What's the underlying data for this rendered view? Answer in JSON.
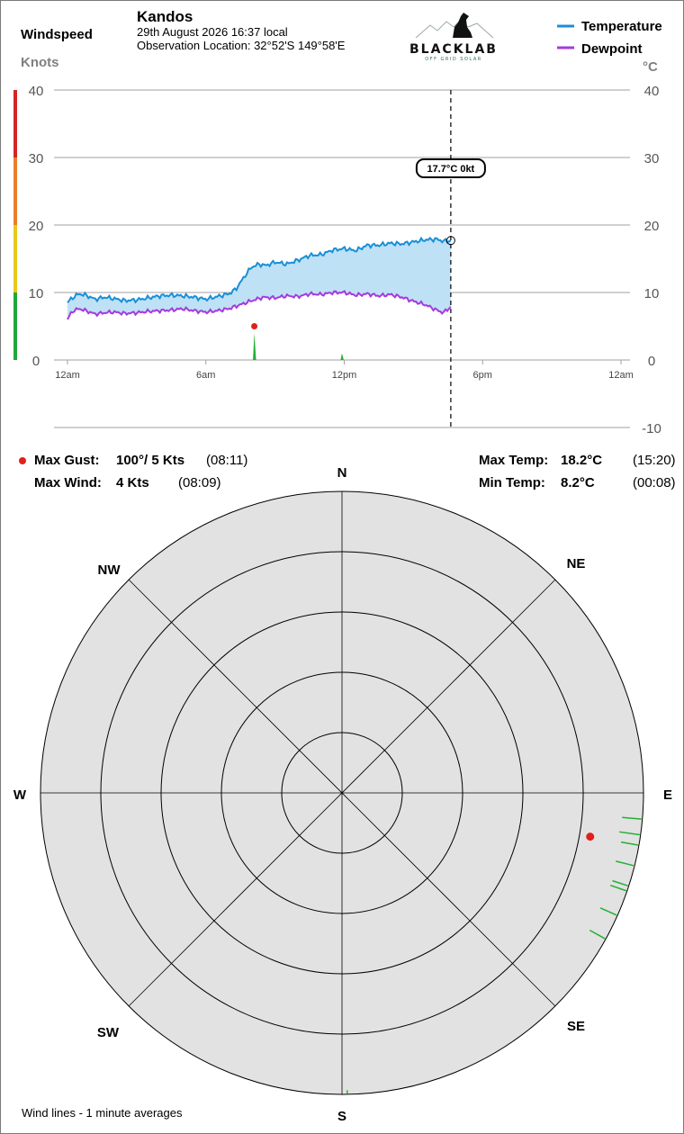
{
  "header": {
    "station": "Kandos",
    "date_line": "29th August 2026  16:37 local",
    "location_line": "Observation Location: 32°52'S 149°58'E"
  },
  "logo": {
    "brand": "BLACKLAB",
    "tagline": "OFF GRID SOLAR"
  },
  "legend": {
    "temperature_label": "Temperature",
    "dewpoint_label": "Dewpoint"
  },
  "left_axis": {
    "title": "Windspeed",
    "unit": "Knots"
  },
  "right_axis": {
    "unit": "°C"
  },
  "cursor": {
    "label": "17.7°C  0kt"
  },
  "stats": {
    "max_gust_label": "Max Gust:",
    "max_gust_value": "100°/ 5 Kts",
    "max_gust_time": "(08:11)",
    "max_wind_label": "Max Wind:",
    "max_wind_value": "4 Kts",
    "max_wind_time": "(08:09)",
    "max_temp_label": "Max Temp:",
    "max_temp_value": "18.2°C",
    "max_temp_time": "(15:20)",
    "min_temp_label": "Min Temp:",
    "min_temp_value": "8.2°C",
    "min_temp_time": "(00:08)"
  },
  "footer": {
    "note": "Wind lines - 1 minute averages"
  },
  "colors": {
    "temperature": "#1a8fd8",
    "temperature_fill": "#bfe1f5",
    "dewpoint": "#a33be0",
    "wind": "#22b033",
    "gust": "#e0201c",
    "grid": "#a0a0a0",
    "rose_bg": "#e2e2e2",
    "brand": "#2e6e52"
  },
  "chart_data": [
    {
      "type": "line",
      "x_unit": "hours since midnight",
      "x_ticks": [
        {
          "x": 0,
          "label": "12am"
        },
        {
          "x": 6,
          "label": "6am"
        },
        {
          "x": 12,
          "label": "12pm"
        },
        {
          "x": 18,
          "label": "6pm"
        },
        {
          "x": 24,
          "label": "12am"
        }
      ],
      "xlim": [
        0,
        24
      ],
      "y_left": {
        "ticks": [
          0,
          10,
          20,
          30,
          40
        ],
        "ylim": [
          0,
          40
        ]
      },
      "y_right": {
        "ticks": [
          -10,
          0,
          10,
          20,
          30,
          40
        ],
        "ylim": [
          -10,
          40
        ]
      },
      "windspeed_scale_bands": [
        {
          "from": 0,
          "to": 10,
          "color": "#1fa83a"
        },
        {
          "from": 10,
          "to": 20,
          "color": "#e8c81a"
        },
        {
          "from": 20,
          "to": 30,
          "color": "#e8802a"
        },
        {
          "from": 30,
          "to": 40,
          "color": "#d42626"
        }
      ],
      "current_time": 16.62,
      "series": [
        {
          "name": "Temperature",
          "x": [
            0,
            0.2,
            0.5,
            0.8,
            1.2,
            1.6,
            2.0,
            2.5,
            3.0,
            3.5,
            4.0,
            4.5,
            5.0,
            5.5,
            6.0,
            6.5,
            7.0,
            7.3,
            7.6,
            7.8,
            8.0,
            8.3,
            8.6,
            9.0,
            9.5,
            10.0,
            10.5,
            11.0,
            11.5,
            12.0,
            12.5,
            13.0,
            13.5,
            14.0,
            14.5,
            15.0,
            15.5,
            16.0,
            16.3,
            16.62
          ],
          "values": [
            8.5,
            9.2,
            9.8,
            9.6,
            9.0,
            9.3,
            9.1,
            8.8,
            8.9,
            9.2,
            9.5,
            9.6,
            9.5,
            9.3,
            9.0,
            9.4,
            9.8,
            10.5,
            12.0,
            13.0,
            13.8,
            14.2,
            14.0,
            14.5,
            14.2,
            14.8,
            15.5,
            15.6,
            16.3,
            16.5,
            16.2,
            17.0,
            17.0,
            17.3,
            17.2,
            17.5,
            17.8,
            17.9,
            17.6,
            17.7
          ]
        },
        {
          "name": "Dewpoint",
          "x": [
            0,
            0.2,
            0.5,
            0.8,
            1.2,
            1.6,
            2.0,
            2.5,
            3.0,
            3.5,
            4.0,
            4.5,
            5.0,
            5.5,
            6.0,
            6.5,
            7.0,
            7.5,
            8.0,
            8.5,
            9.0,
            9.5,
            10.0,
            10.5,
            11.0,
            11.5,
            12.0,
            12.5,
            13.0,
            13.5,
            14.0,
            14.5,
            15.0,
            15.5,
            16.0,
            16.3,
            16.62
          ],
          "values": [
            6.0,
            7.2,
            7.6,
            7.3,
            6.8,
            7.0,
            7.1,
            6.9,
            7.0,
            7.2,
            7.3,
            7.4,
            7.6,
            7.3,
            7.1,
            7.3,
            7.6,
            8.2,
            8.8,
            9.3,
            9.2,
            9.5,
            9.4,
            9.8,
            9.7,
            10.0,
            10.0,
            9.6,
            9.8,
            9.5,
            9.7,
            9.3,
            8.7,
            8.2,
            7.4,
            7.0,
            7.9
          ]
        }
      ],
      "wind_bars": [
        {
          "x": 8.1,
          "value": 4
        },
        {
          "x": 11.9,
          "value": 1
        }
      ],
      "max_gust_marker": {
        "x": 8.1,
        "value": 5
      }
    },
    {
      "type": "polar",
      "directions": [
        "N",
        "NE",
        "E",
        "SE",
        "S",
        "SW",
        "W",
        "NW"
      ],
      "rings": 5,
      "ring_max_kts": 5,
      "wind_samples": [
        {
          "dir_deg": 95,
          "speed_kts": 3.6
        },
        {
          "dir_deg": 98,
          "speed_kts": 3.8
        },
        {
          "dir_deg": 100,
          "speed_kts": 3.2
        },
        {
          "dir_deg": 104,
          "speed_kts": 3.4
        },
        {
          "dir_deg": 108,
          "speed_kts": 3.0
        },
        {
          "dir_deg": 109,
          "speed_kts": 3.1
        },
        {
          "dir_deg": 114,
          "speed_kts": 3.3
        },
        {
          "dir_deg": 119,
          "speed_kts": 3.2
        },
        {
          "dir_deg": 179,
          "speed_kts": 0.6
        }
      ],
      "max_gust": {
        "dir_deg": 100,
        "speed_kts": 5
      }
    }
  ]
}
